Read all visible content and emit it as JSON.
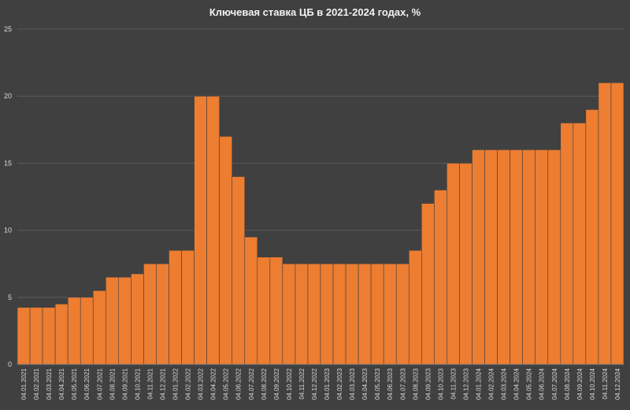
{
  "chart_data": {
    "type": "bar",
    "title": "Ключевая ставка ЦБ в 2021-2024 годах, %",
    "xlabel": "",
    "ylabel": "",
    "ylim": [
      0,
      25
    ],
    "yticks": [
      0,
      5,
      10,
      15,
      20,
      25
    ],
    "grid": true,
    "legend": "none",
    "color": "#ED7D31",
    "categories": [
      "04.01.2021",
      "04.02.2021",
      "04.03.2021",
      "04.04.2021",
      "04.05.2021",
      "04.06.2021",
      "04.07.2021",
      "04.08.2021",
      "04.09.2021",
      "04.10.2021",
      "04.11.2021",
      "04.12.2021",
      "04.01.2022",
      "04.02.2022",
      "04.03.2022",
      "04.04.2022",
      "04.05.2022",
      "04.06.2022",
      "04.07.2022",
      "04.08.2022",
      "04.09.2022",
      "04.10.2022",
      "04.11.2022",
      "04.12.2022",
      "04.01.2023",
      "04.02.2023",
      "04.03.2023",
      "04.04.2023",
      "04.05.2023",
      "04.06.2023",
      "04.07.2023",
      "04.08.2023",
      "04.09.2023",
      "04.10.2023",
      "04.11.2023",
      "04.12.2023",
      "04.01.2024",
      "04.02.2024",
      "04.03.2024",
      "04.04.2024",
      "04.05.2024",
      "04.06.2024",
      "04.07.2024",
      "04.08.2024",
      "04.09.2024",
      "04.10.2024",
      "04.11.2024",
      "04.12.2024"
    ],
    "series": [
      {
        "values": [
          4.25,
          4.25,
          4.25,
          4.5,
          5.0,
          5.0,
          5.5,
          6.5,
          6.5,
          6.75,
          7.5,
          7.5,
          8.5,
          8.5,
          20.0,
          20.0,
          17.0,
          14.0,
          9.5,
          8.0,
          8.0,
          7.5,
          7.5,
          7.5,
          7.5,
          7.5,
          7.5,
          7.5,
          7.5,
          7.5,
          7.5,
          8.5,
          12.0,
          13.0,
          15.0,
          15.0,
          16.0,
          16.0,
          16.0,
          16.0,
          16.0,
          16.0,
          16.0,
          18.0,
          18.0,
          19.0,
          21.0,
          21.0
        ]
      }
    ]
  }
}
